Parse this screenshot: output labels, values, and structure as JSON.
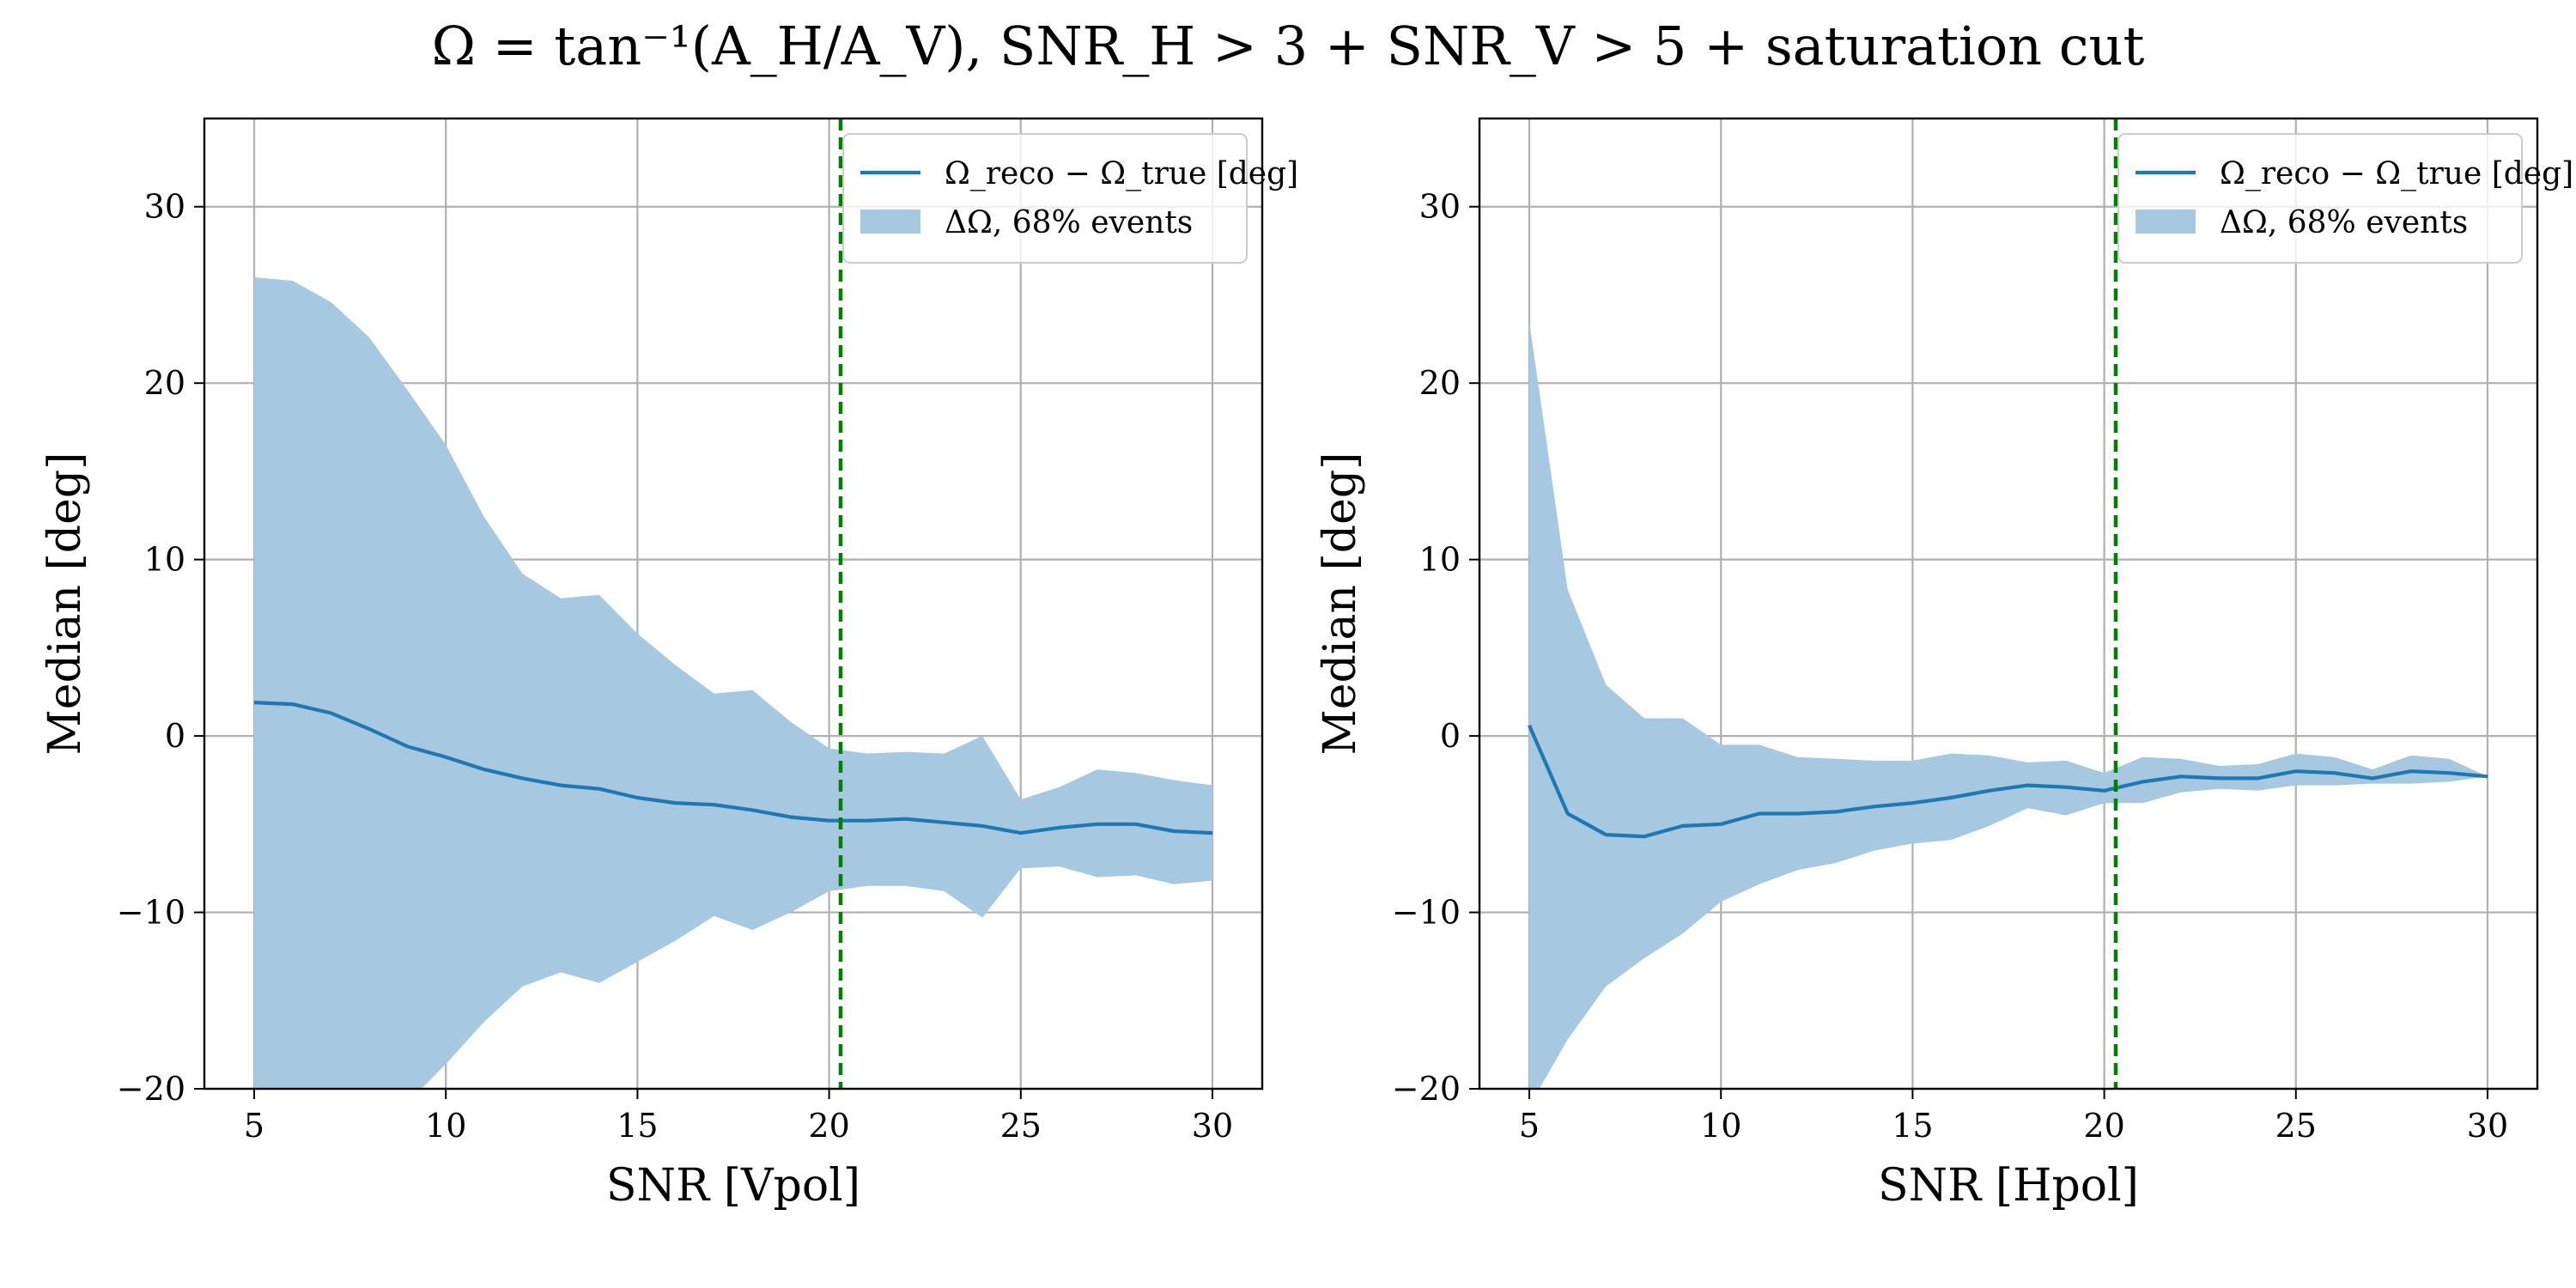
{
  "figure": {
    "title": "Ω = tan⁻¹(A_H/A_V), SNR_H > 3 + SNR_V > 5 + saturation cut"
  },
  "chart_data": [
    {
      "type": "line",
      "xlabel": "SNR [Vpol]",
      "ylabel": "Median [deg]",
      "xlim": [
        3.7,
        31.3
      ],
      "ylim": [
        -20,
        35
      ],
      "xticks": [
        5,
        10,
        15,
        20,
        25,
        30
      ],
      "yticks": [
        -20,
        -10,
        0,
        10,
        20,
        30
      ],
      "grid": true,
      "legend_position": "top-right",
      "x": [
        5,
        6,
        7,
        8,
        9,
        10,
        11,
        12,
        13,
        14,
        15,
        16,
        17,
        18,
        19,
        20,
        21,
        22,
        23,
        24,
        25,
        26,
        27,
        28,
        29,
        30
      ],
      "series": [
        {
          "name": "Ω_reco − Ω_true [deg]",
          "type": "line",
          "color": "#1f77b4",
          "values": [
            1.9,
            1.8,
            1.3,
            0.4,
            -0.6,
            -1.2,
            -1.9,
            -2.4,
            -2.8,
            -3.0,
            -3.5,
            -3.8,
            -3.9,
            -4.2,
            -4.6,
            -4.8,
            -4.8,
            -4.7,
            -4.9,
            -5.1,
            -5.5,
            -5.2,
            -5.0,
            -5.0,
            -5.4,
            -5.5
          ]
        },
        {
          "name": "ΔΩ, 68% events",
          "type": "band",
          "color": "#a6c8e1",
          "upper": [
            26.0,
            25.8,
            24.6,
            22.6,
            19.6,
            16.5,
            12.4,
            9.2,
            7.8,
            8.0,
            5.8,
            4.0,
            2.4,
            2.6,
            0.8,
            -0.7,
            -1.0,
            -0.9,
            -1.0,
            0.0,
            -3.6,
            -2.9,
            -1.9,
            -2.1,
            -2.5,
            -2.8
          ],
          "lower": [
            -26.0,
            -25.0,
            -23.5,
            -22.0,
            -20.8,
            -18.6,
            -16.2,
            -14.2,
            -13.4,
            -14.0,
            -12.8,
            -11.6,
            -10.2,
            -11.0,
            -10.0,
            -8.8,
            -8.5,
            -8.5,
            -8.8,
            -10.3,
            -7.5,
            -7.4,
            -8.0,
            -7.9,
            -8.4,
            -8.2
          ]
        }
      ],
      "annotations": [
        {
          "type": "vline",
          "x": 20.3,
          "color": "#008000",
          "style": "dashed"
        }
      ]
    },
    {
      "type": "line",
      "xlabel": "SNR [Hpol]",
      "ylabel": "Median [deg]",
      "xlim": [
        3.7,
        31.3
      ],
      "ylim": [
        -20,
        35
      ],
      "xticks": [
        5,
        10,
        15,
        20,
        25,
        30
      ],
      "yticks": [
        -20,
        -10,
        0,
        10,
        20,
        30
      ],
      "grid": true,
      "legend_position": "top-right",
      "x": [
        5,
        6,
        7,
        8,
        9,
        10,
        11,
        12,
        13,
        14,
        15,
        16,
        17,
        18,
        19,
        20,
        21,
        22,
        23,
        24,
        25,
        26,
        27,
        28,
        29,
        30
      ],
      "series": [
        {
          "name": "Ω_reco − Ω_true [deg]",
          "type": "line",
          "color": "#1f77b4",
          "values": [
            0.6,
            -4.4,
            -5.6,
            -5.7,
            -5.1,
            -5.0,
            -4.4,
            -4.4,
            -4.3,
            -4.0,
            -3.8,
            -3.5,
            -3.1,
            -2.8,
            -2.9,
            -3.1,
            -2.6,
            -2.3,
            -2.4,
            -2.4,
            -2.0,
            -2.1,
            -2.4,
            -2.0,
            -2.1,
            -2.3
          ]
        },
        {
          "name": "ΔΩ, 68% events",
          "type": "band",
          "color": "#a6c8e1",
          "upper": [
            23.5,
            8.3,
            2.9,
            1.0,
            1.0,
            -0.5,
            -0.5,
            -1.2,
            -1.3,
            -1.4,
            -1.4,
            -1.0,
            -1.1,
            -1.5,
            -1.4,
            -2.1,
            -1.2,
            -1.3,
            -1.7,
            -1.6,
            -1.0,
            -1.2,
            -1.9,
            -1.1,
            -1.3,
            -2.3
          ],
          "lower": [
            -21.0,
            -17.2,
            -14.2,
            -12.6,
            -11.2,
            -9.4,
            -8.4,
            -7.6,
            -7.2,
            -6.5,
            -6.1,
            -5.9,
            -5.1,
            -4.1,
            -4.5,
            -3.8,
            -3.8,
            -3.2,
            -3.0,
            -3.1,
            -2.8,
            -2.8,
            -2.7,
            -2.7,
            -2.6,
            -2.3
          ]
        }
      ],
      "annotations": [
        {
          "type": "vline",
          "x": 20.3,
          "color": "#008000",
          "style": "dashed"
        }
      ]
    }
  ]
}
